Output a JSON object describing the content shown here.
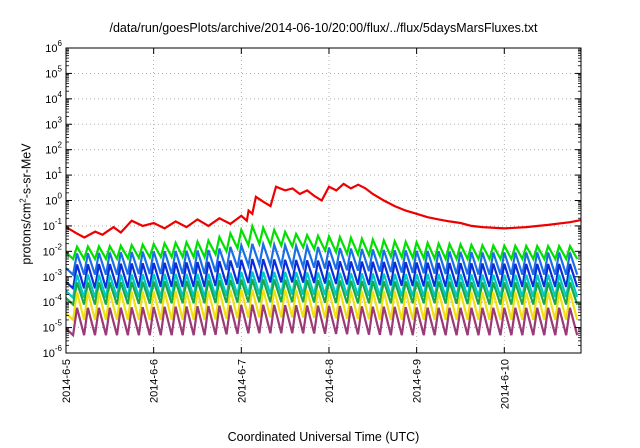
{
  "chart_data": {
    "type": "line",
    "title": "/data/run/goesPlots/archive/2014-06-10/20:00/flux/../flux/5daysMarsFluxes.txt",
    "xlabel": "Coordinated Universal Time (UTC)",
    "ylabel": {
      "prefix": "protons/cm",
      "sup": "2",
      "suffix": "-s-sr-MeV"
    },
    "yscale": "log",
    "ylim": [
      1e-06,
      1000000.0
    ],
    "yticks": [
      {
        "base": "10",
        "exp": "-6"
      },
      {
        "base": "10",
        "exp": "-5"
      },
      {
        "base": "10",
        "exp": "-4"
      },
      {
        "base": "10",
        "exp": "-3"
      },
      {
        "base": "10",
        "exp": "-2"
      },
      {
        "base": "10",
        "exp": "-1"
      },
      {
        "base": "10",
        "exp": "0"
      },
      {
        "base": "10",
        "exp": "1"
      },
      {
        "base": "10",
        "exp": "2"
      },
      {
        "base": "10",
        "exp": "3"
      },
      {
        "base": "10",
        "exp": "4"
      },
      {
        "base": "10",
        "exp": "5"
      },
      {
        "base": "10",
        "exp": "6"
      }
    ],
    "xlim": [
      "2014-06-05 00:00",
      "2014-06-10 21:00"
    ],
    "xticks": [
      "2014-6-5",
      "2014-6-6",
      "2014-6-7",
      "2014-6-8",
      "2014-6-9",
      "2014-6-10"
    ],
    "grid": true,
    "legend": "none",
    "sawtooth": {
      "spikes_per_day": 8,
      "start": "2014-06-05 03:00",
      "count": 46
    },
    "series": [
      {
        "color": "#ee0000",
        "pattern": "rising-steps",
        "points": [
          [
            "2014-06-05 00:00",
            0.09
          ],
          [
            "2014-06-05 03:00",
            0.05
          ],
          [
            "2014-06-05 05:00",
            0.035
          ],
          [
            "2014-06-05 08:00",
            0.06
          ],
          [
            "2014-06-05 10:00",
            0.045
          ],
          [
            "2014-06-05 13:00",
            0.09
          ],
          [
            "2014-06-05 15:00",
            0.055
          ],
          [
            "2014-06-05 18:00",
            0.16
          ],
          [
            "2014-06-05 21:00",
            0.1
          ],
          [
            "2014-06-06 00:00",
            0.13
          ],
          [
            "2014-06-06 03:00",
            0.08
          ],
          [
            "2014-06-06 06:00",
            0.15
          ],
          [
            "2014-06-06 09:00",
            0.09
          ],
          [
            "2014-06-06 12:00",
            0.18
          ],
          [
            "2014-06-06 15:00",
            0.1
          ],
          [
            "2014-06-06 18:00",
            0.2
          ],
          [
            "2014-06-06 21:00",
            0.12
          ],
          [
            "2014-06-07 00:00",
            0.25
          ],
          [
            "2014-06-07 01:30",
            0.16
          ],
          [
            "2014-06-07 02:00",
            0.4
          ],
          [
            "2014-06-07 03:00",
            0.3
          ],
          [
            "2014-06-07 04:00",
            1.4
          ],
          [
            "2014-06-07 06:00",
            0.9
          ],
          [
            "2014-06-07 08:00",
            0.6
          ],
          [
            "2014-06-07 09:30",
            3.5
          ],
          [
            "2014-06-07 12:00",
            2.5
          ],
          [
            "2014-06-07 14:00",
            3.0
          ],
          [
            "2014-06-07 16:00",
            1.8
          ],
          [
            "2014-06-07 18:00",
            2.5
          ],
          [
            "2014-06-07 20:00",
            1.5
          ],
          [
            "2014-06-07 22:00",
            1.0
          ],
          [
            "2014-06-08 00:00",
            3.5
          ],
          [
            "2014-06-08 02:00",
            2.5
          ],
          [
            "2014-06-08 04:00",
            4.5
          ],
          [
            "2014-06-08 06:00",
            3.0
          ],
          [
            "2014-06-08 08:00",
            4.2
          ],
          [
            "2014-06-08 10:00",
            3.0
          ],
          [
            "2014-06-08 12:00",
            1.8
          ],
          [
            "2014-06-08 15:00",
            1.0
          ],
          [
            "2014-06-08 18:00",
            0.6
          ],
          [
            "2014-06-08 21:00",
            0.4
          ],
          [
            "2014-06-09 00:00",
            0.3
          ],
          [
            "2014-06-09 03:00",
            0.22
          ],
          [
            "2014-06-09 06:00",
            0.18
          ],
          [
            "2014-06-09 09:00",
            0.15
          ],
          [
            "2014-06-09 12:00",
            0.13
          ],
          [
            "2014-06-09 15:00",
            0.1
          ],
          [
            "2014-06-09 18:00",
            0.09
          ],
          [
            "2014-06-10 00:00",
            0.08
          ],
          [
            "2014-06-10 06:00",
            0.09
          ],
          [
            "2014-06-10 12:00",
            0.11
          ],
          [
            "2014-06-10 18:00",
            0.14
          ],
          [
            "2014-06-10 21:00",
            0.17
          ]
        ]
      },
      {
        "color": "#00e000",
        "pattern": "sawtooth",
        "lo": [
          0.005,
          0.005,
          0.006,
          0.006,
          0.02,
          0.015,
          0.008,
          0.006,
          0.005,
          0.005,
          0.005,
          0.005
        ],
        "hi": [
          0.015,
          0.016,
          0.02,
          0.025,
          0.1,
          0.045,
          0.035,
          0.025,
          0.02,
          0.017,
          0.016,
          0.016
        ]
      },
      {
        "color": "#1a6fe8",
        "pattern": "sawtooth",
        "lo": [
          0.0012,
          0.0012,
          0.0013,
          0.0013,
          0.003,
          0.0025,
          0.0018,
          0.0015,
          0.0013,
          0.0012,
          0.0012,
          0.0012
        ],
        "hi": [
          0.008,
          0.009,
          0.01,
          0.011,
          0.02,
          0.016,
          0.013,
          0.011,
          0.01,
          0.009,
          0.009,
          0.009
        ]
      },
      {
        "color": "#0a2dd8",
        "pattern": "sawtooth",
        "lo": [
          0.00035,
          0.00035,
          0.0004,
          0.0004,
          0.0006,
          0.0006,
          0.0005,
          0.00045,
          0.0004,
          0.0004,
          0.0004,
          0.0004
        ],
        "hi": [
          0.003,
          0.0032,
          0.0035,
          0.0038,
          0.005,
          0.0045,
          0.004,
          0.0038,
          0.0035,
          0.0033,
          0.0032,
          0.0032
        ]
      },
      {
        "color": "#00c8c8",
        "pattern": "sawtooth",
        "lo": [
          0.00015,
          0.00015,
          0.00016,
          0.00016,
          0.0002,
          0.0002,
          0.00018,
          0.00017,
          0.00016,
          0.00016,
          0.00016,
          0.00016
        ],
        "hi": [
          0.0012,
          0.0012,
          0.0013,
          0.0013,
          0.0016,
          0.0015,
          0.0014,
          0.0013,
          0.0013,
          0.0012,
          0.0012,
          0.0012
        ]
      },
      {
        "color": "#18a848",
        "pattern": "sawtooth",
        "lo": [
          8e-05,
          8e-05,
          9e-05,
          9e-05,
          0.0001,
          0.0001,
          9e-05,
          9e-05,
          9e-05,
          8e-05,
          8e-05,
          8e-05
        ],
        "hi": [
          0.0006,
          0.0006,
          0.00065,
          0.0007,
          0.0008,
          0.00075,
          0.0007,
          0.00065,
          0.00065,
          0.0006,
          0.0006,
          0.0006
        ]
      },
      {
        "color": "#f0e010",
        "pattern": "sawtooth",
        "lo": [
          2e-05,
          2e-05,
          2e-05,
          2e-05,
          2.5e-05,
          2.5e-05,
          2.2e-05,
          2e-05,
          2e-05,
          2e-05,
          2e-05,
          2e-05
        ],
        "hi": [
          0.00025,
          0.00025,
          0.00027,
          0.00028,
          0.00032,
          0.0003,
          0.00028,
          0.00027,
          0.00026,
          0.00025,
          0.00025,
          0.00025
        ]
      },
      {
        "color": "#9b3a78",
        "pattern": "sawtooth",
        "lo": [
          5e-06,
          5e-06,
          5e-06,
          5e-06,
          6e-06,
          6e-06,
          5.5e-06,
          5e-06,
          5e-06,
          5e-06,
          5e-06,
          5e-06
        ],
        "hi": [
          6e-05,
          6e-05,
          6.5e-05,
          7e-05,
          8e-05,
          7.5e-05,
          7e-05,
          6.5e-05,
          6e-05,
          6e-05,
          6e-05,
          6e-05
        ]
      }
    ]
  }
}
